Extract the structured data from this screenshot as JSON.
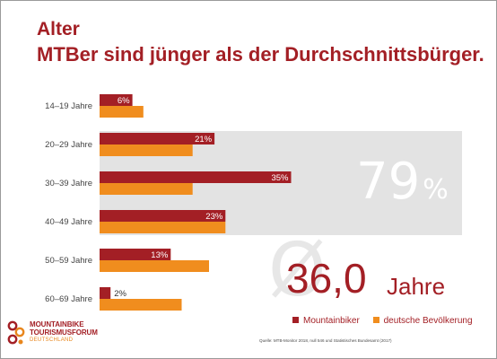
{
  "title": "Alter",
  "subtitle": "MTBer sind jünger als der Durchschnittsbürger.",
  "highlight": {
    "value": "79",
    "unit": "%"
  },
  "average": {
    "value": "36,0",
    "unit": "Jahre"
  },
  "legend": [
    {
      "label": "Mountainbiker",
      "color": "#a31f25"
    },
    {
      "label": "deutsche Bevölkerung",
      "color": "#f08d1e"
    }
  ],
  "source": "Quelle: MTB-Monitor 2018, null 546 und Statistisches Bundesamt (2017)",
  "logo": {
    "line1": "MOUNTAINBIKE",
    "line2": "TOURISMUSFORUM",
    "line3": "DEUTSCHLAND"
  },
  "chart_data": {
    "type": "bar",
    "orientation": "horizontal",
    "categories": [
      "14–19 Jahre",
      "20–29 Jahre",
      "30–39 Jahre",
      "40–49 Jahre",
      "50–59 Jahre",
      "60–69 Jahre"
    ],
    "series": [
      {
        "name": "Mountainbiker",
        "color": "#a31f25",
        "values": [
          6,
          21,
          35,
          23,
          13,
          2
        ],
        "labels": [
          "6%",
          "21%",
          "35%",
          "23%",
          "13%",
          "2%"
        ]
      },
      {
        "name": "deutsche Bevölkerung",
        "color": "#f08d1e",
        "values": [
          8,
          17,
          17,
          23,
          20,
          15
        ]
      }
    ],
    "highlighted_categories": [
      "20–29 Jahre",
      "30–39 Jahre",
      "40–49 Jahre"
    ],
    "grid": false
  }
}
